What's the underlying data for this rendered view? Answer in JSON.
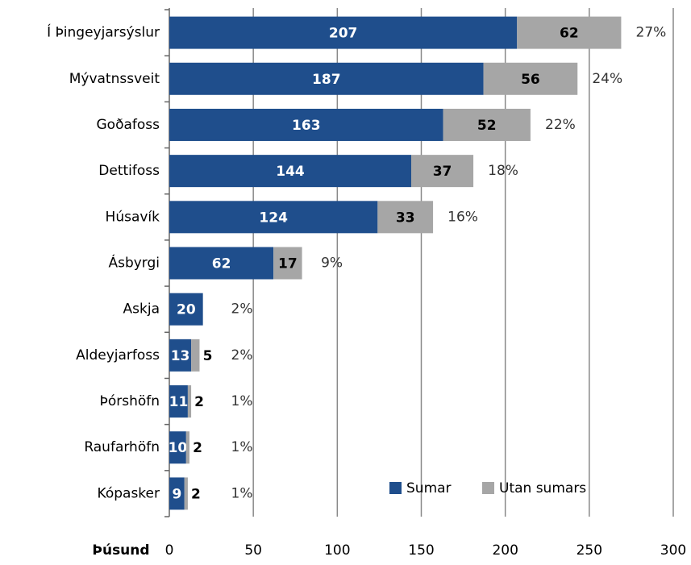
{
  "chart_data": {
    "type": "stacked-barh",
    "categories": [
      "Í Þingeyjarsýslur",
      "Mývatnssveit",
      "Goðafoss",
      "Dettifoss",
      "Húsavík",
      "Ásbyrgi",
      "Askja",
      "Aldeyjarfoss",
      "Þórshöfn",
      "Raufarhöfn",
      "Kópasker"
    ],
    "series": [
      {
        "name": "Sumar",
        "color": "#1f4e8c",
        "values": [
          207,
          187,
          163,
          144,
          124,
          62,
          20,
          13,
          11,
          10,
          9
        ]
      },
      {
        "name": "Utan sumars",
        "color": "#a6a6a6",
        "values": [
          62,
          56,
          52,
          37,
          33,
          17,
          0,
          5,
          2,
          2,
          2
        ]
      }
    ],
    "share_values": [
      27,
      24,
      22,
      18,
      16,
      9,
      2,
      2,
      1,
      1,
      1
    ],
    "share_labels": [
      "27%",
      "24%",
      "22%",
      "18%",
      "16%",
      "9%",
      "2%",
      "2%",
      "1%",
      "1%",
      "1%"
    ],
    "x_axis_label": "Þúsund",
    "xlim": [
      0,
      300
    ],
    "xticks": [
      0,
      50,
      100,
      150,
      200,
      250,
      300
    ],
    "grid": true,
    "legend": "lower right"
  }
}
